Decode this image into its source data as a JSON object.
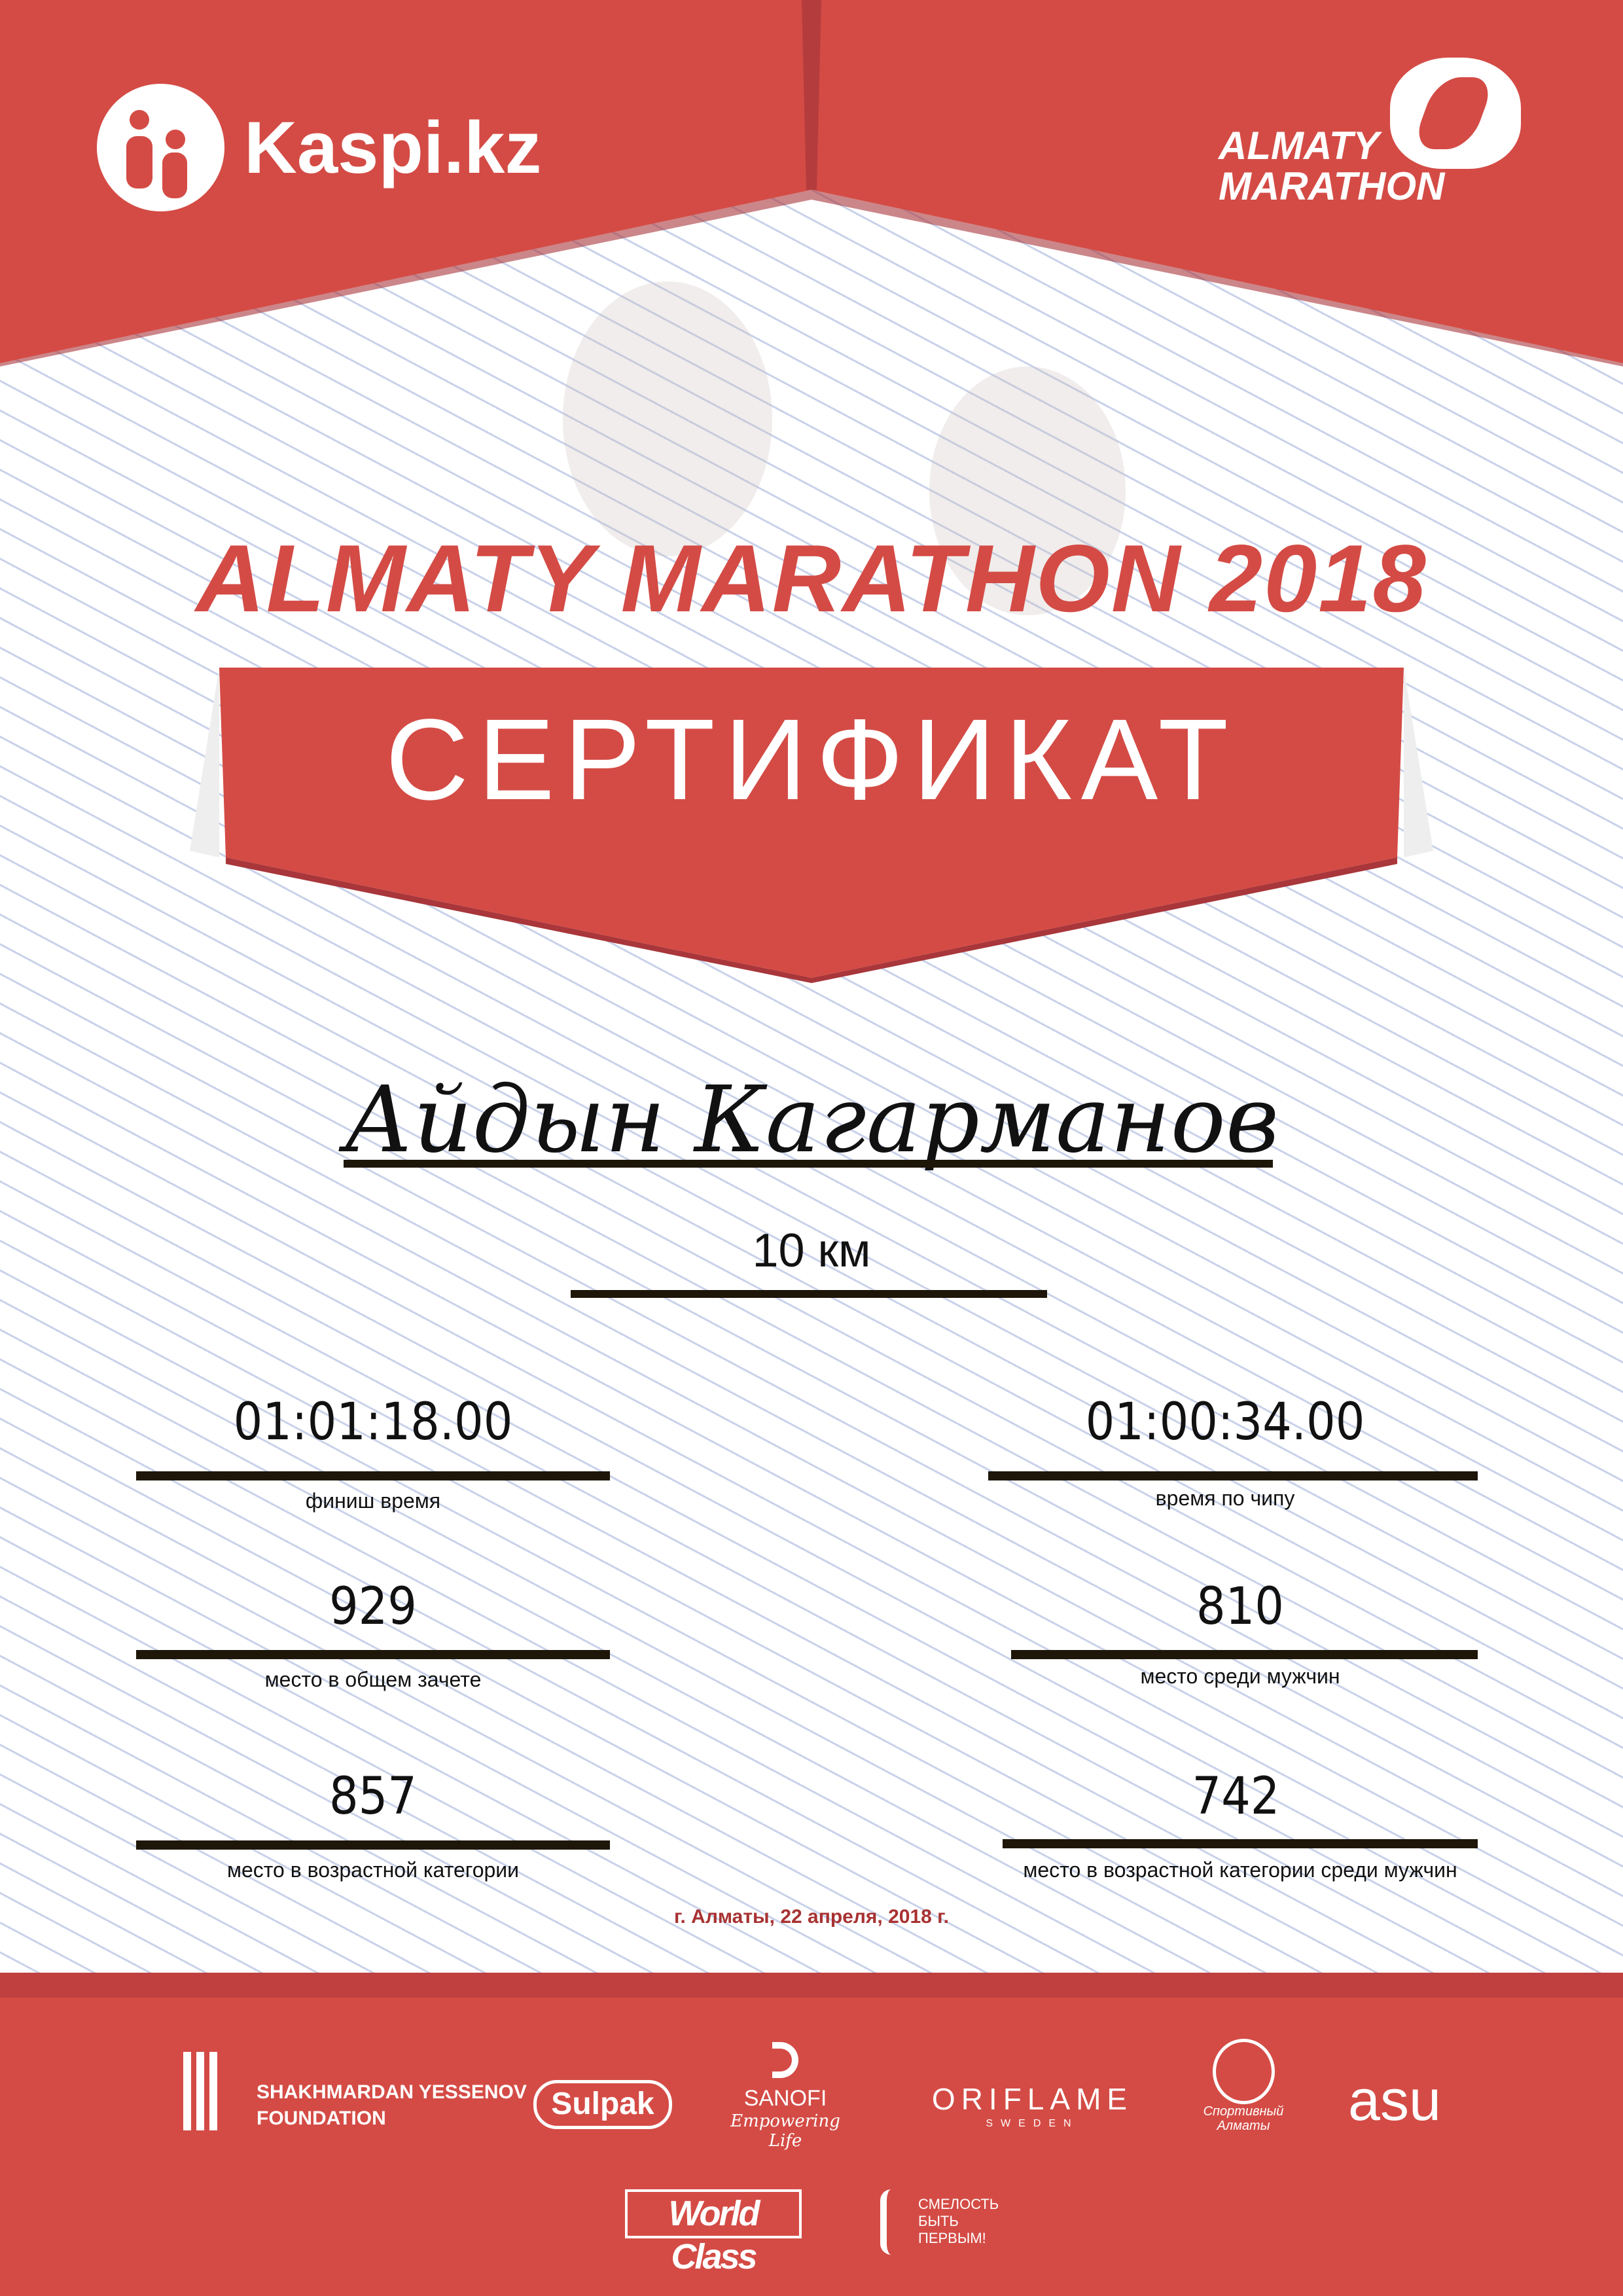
{
  "header": {
    "sponsor_logo": "Kaspi.kz",
    "event_logo_line1": "ALMATY",
    "event_logo_line2": "MARATHON"
  },
  "title": "ALMATY MARATHON 2018",
  "banner": "СЕРТИФИКАТ",
  "participant": {
    "name": "Айдын Кагарманов",
    "distance": "10 км"
  },
  "results": [
    {
      "value": "01:01:18.00",
      "label": "финиш время"
    },
    {
      "value": "01:00:34.00",
      "label": "время по чипу"
    },
    {
      "value": "929",
      "label": "место в общем зачете"
    },
    {
      "value": "810",
      "label": "место среди мужчин"
    },
    {
      "value": "857",
      "label": "место в возрастной категории"
    },
    {
      "value": "742",
      "label": "место в возрастной категории среди мужчин"
    }
  ],
  "date": "г. Алматы, 22 апреля, 2018 г.",
  "footer": {
    "yessenov_line1": "SHAKHMARDAN YESSENOV",
    "yessenov_line2": "FOUNDATION",
    "sulpak": "Sulpak",
    "sanofi": "SANOFI",
    "sanofi_tagline": "Empowering Life",
    "oriflame": "ORIFLAME",
    "oriflame_sub": "SWEDEN",
    "sport_almaty": "Спортивный Алматы",
    "asu": "asu",
    "worldclass": "World Class",
    "smelost": "СМЕЛОСТЬ БЫТЬ ПЕРВЫМ!"
  },
  "colors": {
    "brand_red": "#d44b45",
    "dark_red": "#a8363a",
    "line": "#1e1608",
    "date": "#a83232"
  }
}
